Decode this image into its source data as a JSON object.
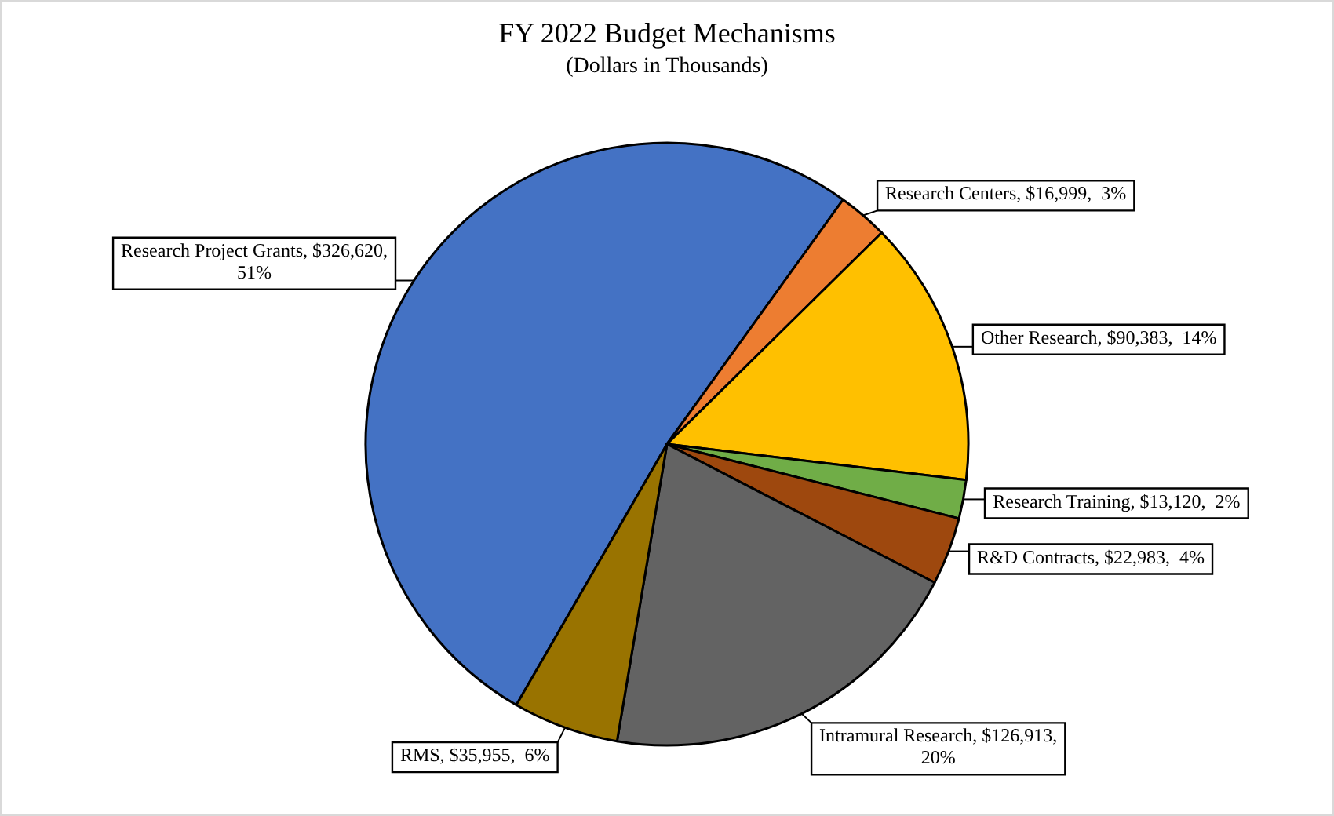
{
  "chart_data": {
    "type": "pie",
    "title": "FY 2022 Budget Mechanisms",
    "subtitle": "(Dollars in Thousands)",
    "categories": [
      "Research Project Grants",
      "Research Centers",
      "Other Research",
      "Research Training",
      "R&D Contracts",
      "Intramural Research",
      "RMS"
    ],
    "values": [
      326620,
      16999,
      90383,
      13120,
      22983,
      126913,
      35955
    ],
    "colors": [
      "#4472c4",
      "#ed7d31",
      "#ffc000",
      "#70ad47",
      "#9e480e",
      "#636363",
      "#997300"
    ],
    "value_labels": [
      "$326,620,  51%",
      "$16,999,  3%",
      "$90,383,  14%",
      "$13,120,  2%",
      "$22,983,  4%",
      "$126,913,  20%",
      "$35,955,  6%"
    ]
  }
}
